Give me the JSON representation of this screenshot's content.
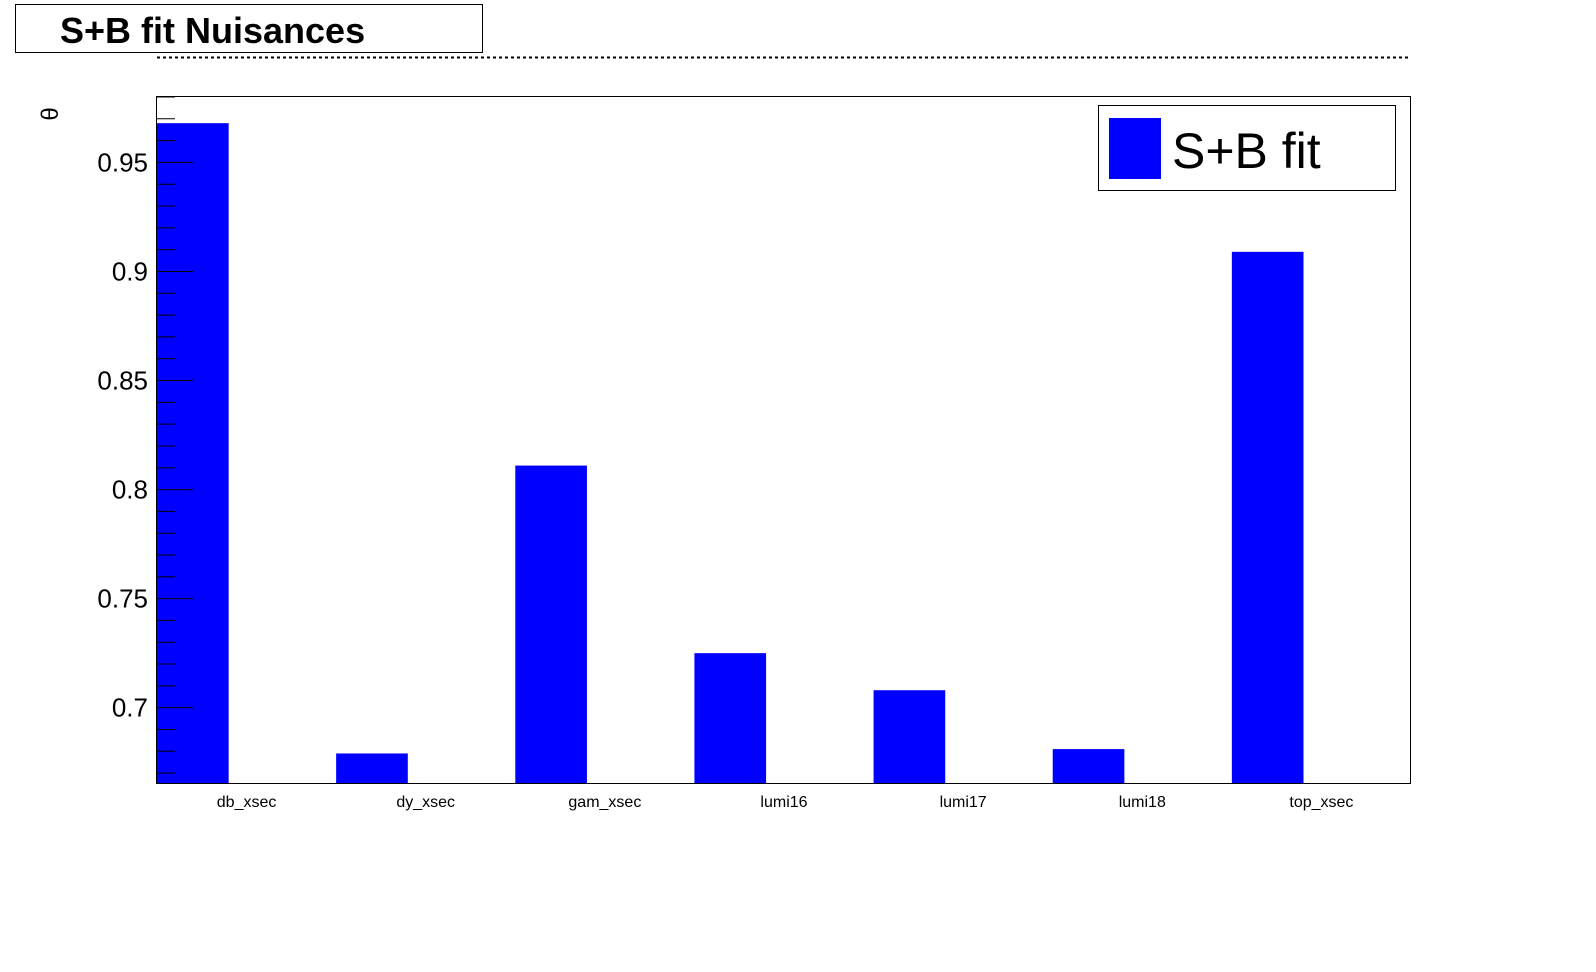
{
  "chart_data": {
    "type": "bar",
    "title": "S+B fit Nuisances",
    "ylabel": "θ",
    "xlabel": "",
    "categories": [
      "db_xsec",
      "dy_xsec",
      "gam_xsec",
      "lumi16",
      "lumi17",
      "lumi18",
      "top_xsec"
    ],
    "series": [
      {
        "name": "S+B fit",
        "color": "#0000ff",
        "values": [
          0.968,
          0.679,
          0.811,
          0.725,
          0.708,
          0.681,
          0.909
        ]
      }
    ],
    "ylim": [
      0.665,
      0.98
    ],
    "yticks": [
      0.7,
      0.75,
      0.8,
      0.85,
      0.9,
      0.95
    ],
    "ytick_labels": [
      "0.7",
      "0.75",
      "0.8",
      "0.85",
      "0.9",
      "0.95"
    ],
    "legend_position": "top-right",
    "grid": false
  }
}
